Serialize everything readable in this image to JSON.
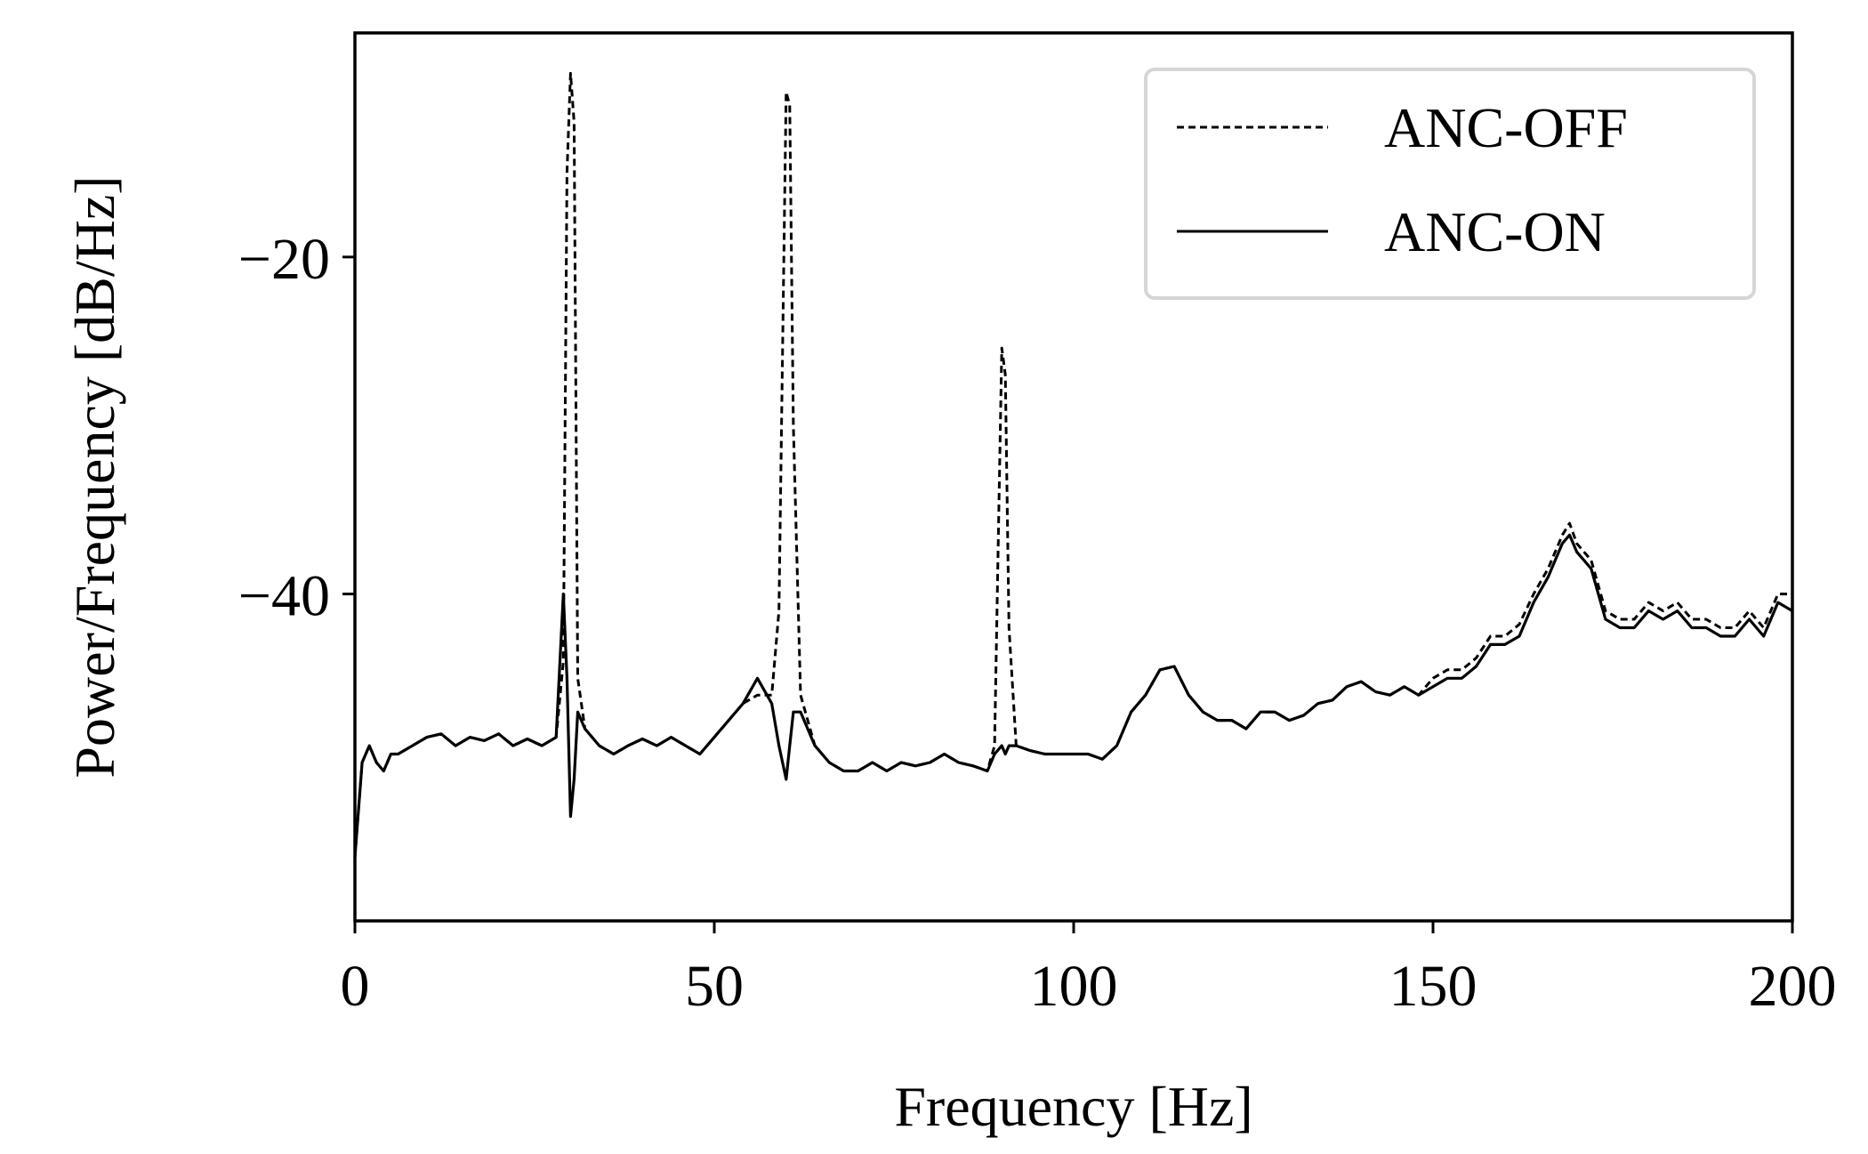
{
  "chart_data": {
    "type": "line",
    "xlabel": "Frequency [Hz]",
    "ylabel": "Power/Frequency [dB/Hz]",
    "xlim": [
      0,
      200
    ],
    "ylim": [
      -59.4,
      -6.7
    ],
    "xticks": [
      0,
      50,
      100,
      150,
      200
    ],
    "yticks": [
      {
        "value": -20,
        "label": "−20"
      },
      {
        "value": -40,
        "label": "−40"
      }
    ],
    "legend": "upper right",
    "x": [
      0,
      1,
      2,
      3,
      4,
      5,
      6,
      8,
      10,
      12,
      14,
      16,
      18,
      20,
      22,
      24,
      26,
      28,
      29,
      29.5,
      30,
      30.5,
      31,
      32,
      34,
      36,
      38,
      40,
      42,
      44,
      46,
      48,
      50,
      52,
      54,
      56,
      58,
      59,
      60,
      60.5,
      61,
      62,
      64,
      66,
      68,
      70,
      72,
      74,
      76,
      78,
      80,
      82,
      84,
      86,
      88,
      89,
      90,
      90.5,
      91,
      92,
      94,
      96,
      98,
      100,
      102,
      104,
      106,
      108,
      110,
      112,
      114,
      116,
      118,
      120,
      122,
      124,
      126,
      128,
      130,
      132,
      134,
      136,
      138,
      140,
      142,
      144,
      146,
      148,
      150,
      152,
      154,
      156,
      158,
      160,
      162,
      164,
      166,
      168,
      169,
      170,
      172,
      174,
      176,
      178,
      180,
      182,
      184,
      186,
      188,
      190,
      192,
      194,
      196,
      198,
      200
    ],
    "series": [
      {
        "name": "ANC-OFF",
        "color": "#000000",
        "dash": true,
        "values": [
          -55.6,
          -50,
          -49,
          -50,
          -50.5,
          -49.5,
          -49.5,
          -49,
          -48.5,
          -48.3,
          -49,
          -48.5,
          -48.7,
          -48.3,
          -49,
          -48.6,
          -49,
          -48.5,
          -44,
          -15,
          -9.1,
          -12,
          -45,
          -48,
          -49,
          -49.5,
          -49,
          -48.6,
          -49,
          -48.5,
          -49,
          -49.5,
          -48.5,
          -47.5,
          -46.5,
          -46,
          -46,
          -41,
          -10.2,
          -11,
          -30,
          -46,
          -49,
          -50,
          -50.5,
          -50.5,
          -50,
          -50.5,
          -50,
          -50.2,
          -50,
          -49.5,
          -50,
          -50.2,
          -50.5,
          -49,
          -25.4,
          -27,
          -42,
          -49,
          -49.3,
          -49.5,
          -49.5,
          -49.5,
          -49.5,
          -49.8,
          -49,
          -47,
          -46,
          -44.5,
          -44.3,
          -46,
          -47,
          -47.5,
          -47.5,
          -48,
          -47,
          -47,
          -47.5,
          -47.2,
          -46.5,
          -46.3,
          -45.5,
          -45.2,
          -45.8,
          -46,
          -45.5,
          -46,
          -45,
          -44.5,
          -44.5,
          -43.8,
          -42.5,
          -42.5,
          -41.8,
          -40,
          -38.5,
          -36.5,
          -35.8,
          -37,
          -38,
          -41,
          -41.5,
          -41.5,
          -40.5,
          -41,
          -40.5,
          -41.5,
          -41.5,
          -42,
          -42,
          -41,
          -42,
          -40,
          -40
        ]
      },
      {
        "name": "ANC-ON",
        "color": "#000000",
        "dash": false,
        "values": [
          -55.6,
          -50,
          -49,
          -50,
          -50.5,
          -49.5,
          -49.5,
          -49,
          -48.5,
          -48.3,
          -49,
          -48.5,
          -48.7,
          -48.3,
          -49,
          -48.6,
          -49,
          -48.5,
          -40,
          -45,
          -53.2,
          -51,
          -47,
          -48,
          -49,
          -49.5,
          -49,
          -48.6,
          -49,
          -48.5,
          -49,
          -49.5,
          -48.5,
          -47.5,
          -46.5,
          -45,
          -46.5,
          -49,
          -51,
          -49,
          -47,
          -47,
          -49,
          -50,
          -50.5,
          -50.5,
          -50,
          -50.5,
          -50,
          -50.2,
          -50,
          -49.5,
          -50,
          -50.2,
          -50.5,
          -49.5,
          -49,
          -49.5,
          -49,
          -49,
          -49.3,
          -49.5,
          -49.5,
          -49.5,
          -49.5,
          -49.8,
          -49,
          -47,
          -46,
          -44.5,
          -44.3,
          -46,
          -47,
          -47.5,
          -47.5,
          -48,
          -47,
          -47,
          -47.5,
          -47.2,
          -46.5,
          -46.3,
          -45.5,
          -45.2,
          -45.8,
          -46,
          -45.5,
          -46,
          -45.5,
          -45,
          -45,
          -44.3,
          -43,
          -43,
          -42.5,
          -40.5,
          -39,
          -37,
          -36.5,
          -37.5,
          -38.5,
          -41.5,
          -42,
          -42,
          -41,
          -41.5,
          -41,
          -42,
          -42,
          -42.5,
          -42.5,
          -41.5,
          -42.5,
          -40.5,
          -41
        ]
      }
    ]
  }
}
